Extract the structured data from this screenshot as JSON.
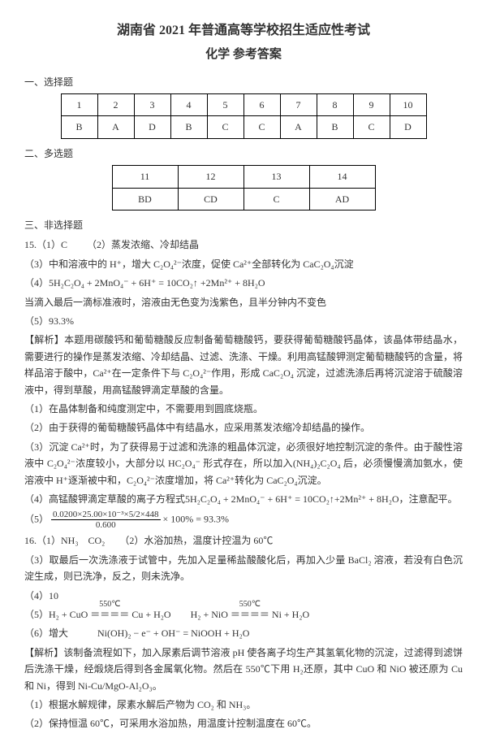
{
  "header": {
    "title": "湖南省 2021 年普通高等学校招生适应性考试",
    "subtitle": "化学 参考答案"
  },
  "section1": {
    "title": "一、选择题",
    "cols": [
      "1",
      "2",
      "3",
      "4",
      "5",
      "6",
      "7",
      "8",
      "9",
      "10"
    ],
    "ans": [
      "B",
      "A",
      "D",
      "B",
      "C",
      "C",
      "A",
      "B",
      "C",
      "D"
    ]
  },
  "section2": {
    "title": "二、多选题",
    "cols": [
      "11",
      "12",
      "13",
      "14"
    ],
    "ans": [
      "BD",
      "CD",
      "C",
      "AD"
    ]
  },
  "section3": {
    "title": "三、非选择题",
    "q15": {
      "l1a": "15.（1）C",
      "l1b": "（2）蒸发浓缩、冷却结晶",
      "l2": "（3）中和溶液中的 H⁺，增大 C₂O₄²⁻浓度，促使 Ca²⁺全部转化为 CaC₂O₄沉淀",
      "l3": "（4）5H₂C₂O₄ + 2MnO₄⁻ + 6H⁺ = 10CO₂↑ +2Mn²⁺ + 8H₂O",
      "l4": "当滴入最后一滴标准液时，溶液由无色变为浅紫色，且半分钟内不变色",
      "l5": "（5）93.3%",
      "ana_label": "【解析】",
      "ana1": "本题用碳酸钙和葡萄糖酸反应制备葡萄糖酸钙，要获得葡萄糖酸钙晶体，该晶体带结晶水，需要进行的操作是蒸发浓缩、冷却结晶、过滤、洗涤、干燥。利用高锰酸钾测定葡萄糖酸钙的含量，将样品溶于酸中，Ca²⁺在一定条件下与 C₂O₄²⁻作用，形成 CaC₂O₄ 沉淀，过滤洗涤后再将沉淀溶于硫酸溶液中，得到草酸，用高锰酸钾滴定草酸的含量。",
      "ana_p1": "（1）在晶体制备和纯度测定中，不需要用到圆底烧瓶。",
      "ana_p2": "（2）由于获得的葡萄糖酸钙晶体中有结晶水，应采用蒸发浓缩冷却结晶的操作。",
      "ana_p3": "（3）沉淀 Ca²⁺时，为了获得易于过滤和洗涤的粗晶体沉淀，必须很好地控制沉淀的条件。由于酸性溶液中 C₂O₄²⁻浓度较小，大部分以 HC₂O₄⁻ 形式存在，所以加入(NH₄)₂C₂O₄ 后，必须慢慢滴加氨水，使溶液中 H⁺逐渐被中和，C₂O₄²⁻浓度增加，将 Ca²⁺转化为 CaC₂O₄沉淀。",
      "ana_p4": "（4）高锰酸钾滴定草酸的离子方程式5H₂C₂O₄ + 2MnO₄⁻ + 6H⁺ = 10CO₂↑+2Mn²⁺ + 8H₂O，注意配平。",
      "ana_p5_prefix": "（5）",
      "frac_num": "0.0200×25.00×10⁻³×5/2×448",
      "frac_den": "0.600",
      "ana_p5_suffix": " × 100% = 93.3%"
    },
    "q16": {
      "l1a": "16.（1）NH₃　CO₂",
      "l1b": "（2）水浴加热，温度计控温为 60℃",
      "l2": "（3）取最后一次洗涤液于试管中，先加入足量稀盐酸酸化后，再加入少量 BaCl₂ 溶液，若没有白色沉淀生成，则已洗净，反之，则未洗净。",
      "l3": "（4）10",
      "l4_prefix": "（5）H₂ + CuO ",
      "arrow_top": "550℃",
      "arrow_body": "＝＝＝＝",
      "l4_mid": " Cu + H₂O　　H₂ + NiO ",
      "l4_suffix": " Ni + H₂O",
      "l5": "（6）增大　　　Ni(OH)₂ − e⁻ + OH⁻ = NiOOH + H₂O",
      "ana_label": "【解析】",
      "ana1": "该制备流程如下，加入尿素后调节溶液 pH 使各离子均生产其氢氧化物的沉淀，过滤得到滤饼后洗涤干燥，经煅烧后得到各金属氧化物。然后在 550℃下用 H₂还原，其中 CuO 和 NiO 被还原为 Cu 和 Ni，得到 Ni-Cu/MgO-Al₂O₃。",
      "ana_p1": "（1）根据水解规律，尿素水解后产物为 CO₂ 和 NH₃。",
      "ana_p2": "（2）保持恒温 60℃，可采用水浴加热，用温度计控制温度在 60℃。"
    }
  }
}
